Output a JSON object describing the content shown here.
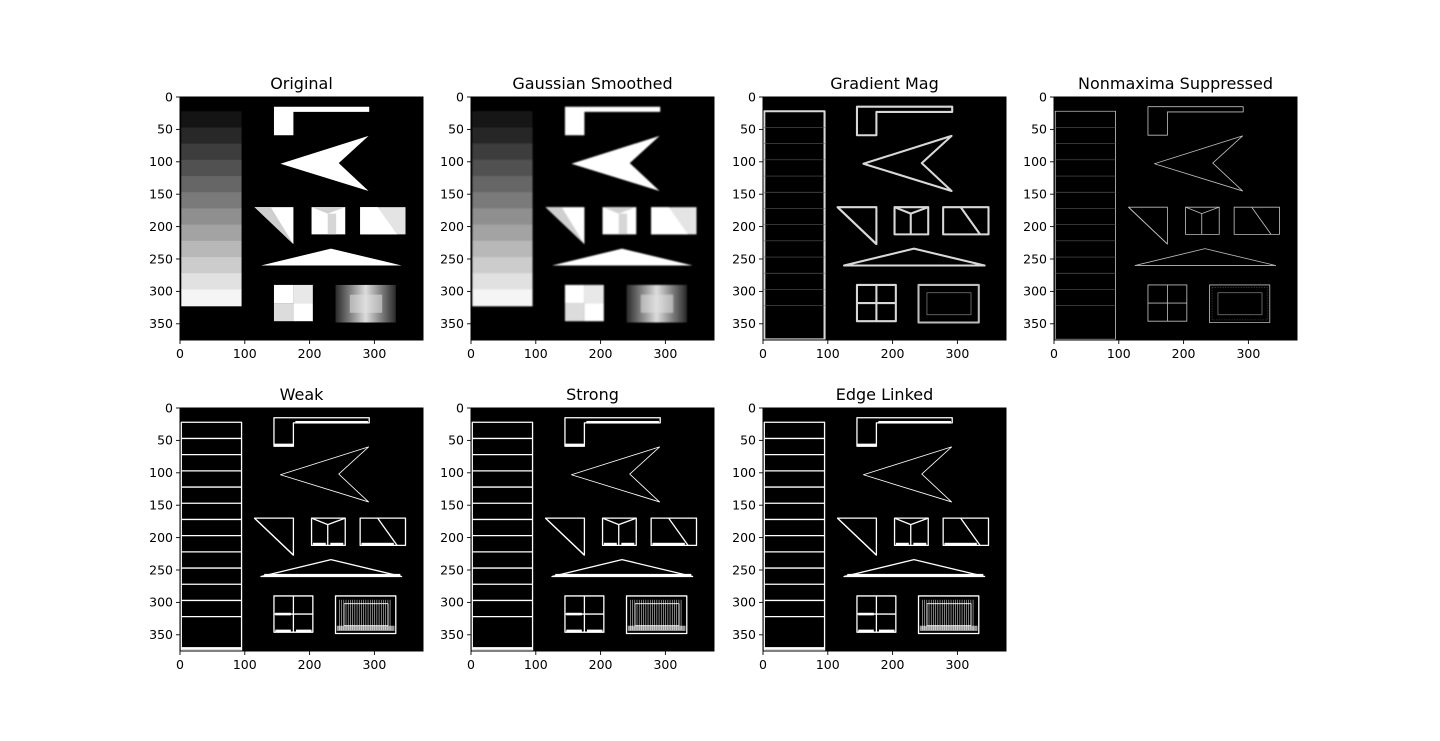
{
  "chart_data": {
    "type": "image-grid",
    "axes": {
      "x_ticks": [
        0,
        100,
        200,
        300
      ],
      "y_ticks": [
        0,
        50,
        100,
        150,
        200,
        250,
        300,
        350
      ],
      "xlim": [
        0,
        375
      ],
      "ylim": [
        375,
        0
      ]
    },
    "panels": [
      {
        "title": "Original",
        "render": "image",
        "blur": 0
      },
      {
        "title": "Gaussian Smoothed",
        "render": "image",
        "blur": 1.2
      },
      {
        "title": "Gradient Mag",
        "render": "edges",
        "style": "thick"
      },
      {
        "title": "Nonmaxima Suppressed",
        "render": "edges",
        "style": "thin"
      },
      {
        "title": "Weak",
        "render": "edges",
        "style": "binary"
      },
      {
        "title": "Strong",
        "render": "edges",
        "style": "binary"
      },
      {
        "title": "Edge Linked",
        "render": "edges",
        "style": "binary"
      }
    ],
    "colors": {
      "background": "#000000",
      "foreground": "#ffffff"
    }
  }
}
